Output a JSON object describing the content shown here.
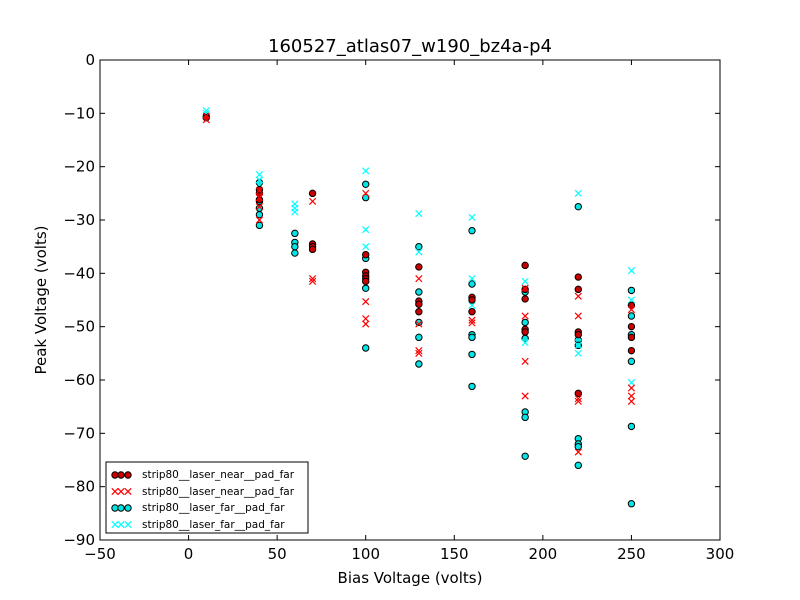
{
  "chart_data": {
    "type": "scatter",
    "title": "160527_atlas07_w190_bz4a-p4",
    "xlabel": "Bias Voltage (volts)",
    "ylabel": "Peak Voltage (volts)",
    "xlim": [
      -50,
      300
    ],
    "ylim": [
      -90,
      0
    ],
    "xticks": [
      -50,
      0,
      50,
      100,
      150,
      200,
      250,
      300
    ],
    "yticks": [
      0,
      -10,
      -20,
      -30,
      -40,
      -50,
      -60,
      -70,
      -80,
      -90
    ],
    "xtick_labels": [
      "−50",
      "0",
      "50",
      "100",
      "150",
      "200",
      "250",
      "300"
    ],
    "ytick_labels": [
      "0",
      "−10",
      "−20",
      "−30",
      "−40",
      "−50",
      "−60",
      "−70",
      "−80",
      "−90"
    ],
    "grid": false,
    "legend_position": "lower-left",
    "series": [
      {
        "name": "strip80__laser_near__pad_far",
        "marker": "circle",
        "color": "#cc0000",
        "points": [
          [
            10,
            -10.8
          ],
          [
            40,
            -25.0
          ],
          [
            40,
            -26.2
          ],
          [
            40,
            -24.3
          ],
          [
            70,
            -25.0
          ],
          [
            70,
            -34.5
          ],
          [
            70,
            -35.0
          ],
          [
            70,
            -35.5
          ],
          [
            100,
            -36.5
          ],
          [
            100,
            -39.8
          ],
          [
            100,
            -40.5
          ],
          [
            100,
            -41.0
          ],
          [
            100,
            -41.5
          ],
          [
            130,
            -45.2
          ],
          [
            130,
            -45.8
          ],
          [
            130,
            -47.2
          ],
          [
            130,
            -38.8
          ],
          [
            160,
            -44.5
          ],
          [
            160,
            -45.0
          ],
          [
            160,
            -47.2
          ],
          [
            190,
            -38.5
          ],
          [
            190,
            -43.0
          ],
          [
            190,
            -44.8
          ],
          [
            190,
            -50.5
          ],
          [
            190,
            -51.0
          ],
          [
            220,
            -40.7
          ],
          [
            220,
            -43.0
          ],
          [
            220,
            -51.0
          ],
          [
            220,
            -51.5
          ],
          [
            220,
            -62.5
          ],
          [
            250,
            -46.0
          ],
          [
            250,
            -50.0
          ],
          [
            250,
            -52.0
          ],
          [
            250,
            -54.5
          ]
        ]
      },
      {
        "name": "strip80__laser_near__pad_far",
        "marker": "x",
        "color": "#ff0000",
        "points": [
          [
            10,
            -11.2
          ],
          [
            10,
            -10.5
          ],
          [
            40,
            -24.5
          ],
          [
            40,
            -25.8
          ],
          [
            40,
            -27.5
          ],
          [
            40,
            -30.0
          ],
          [
            70,
            -26.5
          ],
          [
            70,
            -41.0
          ],
          [
            70,
            -41.5
          ],
          [
            100,
            -25.0
          ],
          [
            100,
            -45.3
          ],
          [
            100,
            -48.5
          ],
          [
            100,
            -49.5
          ],
          [
            130,
            -41.0
          ],
          [
            130,
            -49.5
          ],
          [
            130,
            -54.5
          ],
          [
            130,
            -55.0
          ],
          [
            160,
            -48.8
          ],
          [
            160,
            -49.3
          ],
          [
            190,
            -42.8
          ],
          [
            190,
            -48.0
          ],
          [
            190,
            -56.5
          ],
          [
            190,
            -63.0
          ],
          [
            220,
            -44.3
          ],
          [
            220,
            -48.0
          ],
          [
            220,
            -63.5
          ],
          [
            220,
            -64.0
          ],
          [
            220,
            -73.5
          ],
          [
            250,
            -46.8
          ],
          [
            250,
            -61.5
          ],
          [
            250,
            -63.0
          ],
          [
            250,
            -64.0
          ]
        ]
      },
      {
        "name": "strip80__laser_far__pad_far",
        "marker": "circle",
        "color": "#00e5e5",
        "points": [
          [
            10,
            -10.5
          ],
          [
            10,
            -10.8
          ],
          [
            40,
            -23.0
          ],
          [
            40,
            -26.5
          ],
          [
            40,
            -27.8
          ],
          [
            40,
            -29.0
          ],
          [
            40,
            -31.0
          ],
          [
            60,
            -32.5
          ],
          [
            60,
            -34.2
          ],
          [
            60,
            -35.0
          ],
          [
            60,
            -36.2
          ],
          [
            100,
            -23.3
          ],
          [
            100,
            -25.8
          ],
          [
            100,
            -37.2
          ],
          [
            100,
            -42.8
          ],
          [
            100,
            -54.0
          ],
          [
            130,
            -35.0
          ],
          [
            130,
            -43.5
          ],
          [
            130,
            -49.2
          ],
          [
            130,
            -52.0
          ],
          [
            130,
            -57.0
          ],
          [
            160,
            -32.0
          ],
          [
            160,
            -42.0
          ],
          [
            160,
            -51.5
          ],
          [
            160,
            -52.0
          ],
          [
            160,
            -55.2
          ],
          [
            160,
            -61.2
          ],
          [
            190,
            -43.5
          ],
          [
            190,
            -49.2
          ],
          [
            190,
            -52.2
          ],
          [
            190,
            -66.0
          ],
          [
            190,
            -67.0
          ],
          [
            190,
            -74.3
          ],
          [
            220,
            -27.5
          ],
          [
            220,
            -52.5
          ],
          [
            220,
            -53.5
          ],
          [
            220,
            -71.0
          ],
          [
            220,
            -72.0
          ],
          [
            220,
            -72.5
          ],
          [
            220,
            -76.0
          ],
          [
            250,
            -43.2
          ],
          [
            250,
            -48.0
          ],
          [
            250,
            -51.5
          ],
          [
            250,
            -56.5
          ],
          [
            250,
            -68.7
          ],
          [
            250,
            -83.2
          ]
        ]
      },
      {
        "name": "strip80__laser_far__pad_far",
        "marker": "x",
        "color": "#00ffff",
        "points": [
          [
            10,
            -9.5
          ],
          [
            10,
            -10.0
          ],
          [
            40,
            -21.5
          ],
          [
            40,
            -22.5
          ],
          [
            40,
            -23.5
          ],
          [
            60,
            -27.0
          ],
          [
            60,
            -27.8
          ],
          [
            60,
            -28.5
          ],
          [
            100,
            -20.8
          ],
          [
            100,
            -31.8
          ],
          [
            100,
            -35.0
          ],
          [
            130,
            -28.8
          ],
          [
            130,
            -36.0
          ],
          [
            160,
            -29.5
          ],
          [
            160,
            -41.0
          ],
          [
            160,
            -46.0
          ],
          [
            190,
            -41.5
          ],
          [
            190,
            -53.0
          ],
          [
            220,
            -25.0
          ],
          [
            220,
            -52.0
          ],
          [
            220,
            -53.5
          ],
          [
            220,
            -55.0
          ],
          [
            250,
            -39.5
          ],
          [
            250,
            -45.0
          ],
          [
            250,
            -60.5
          ]
        ]
      }
    ]
  }
}
